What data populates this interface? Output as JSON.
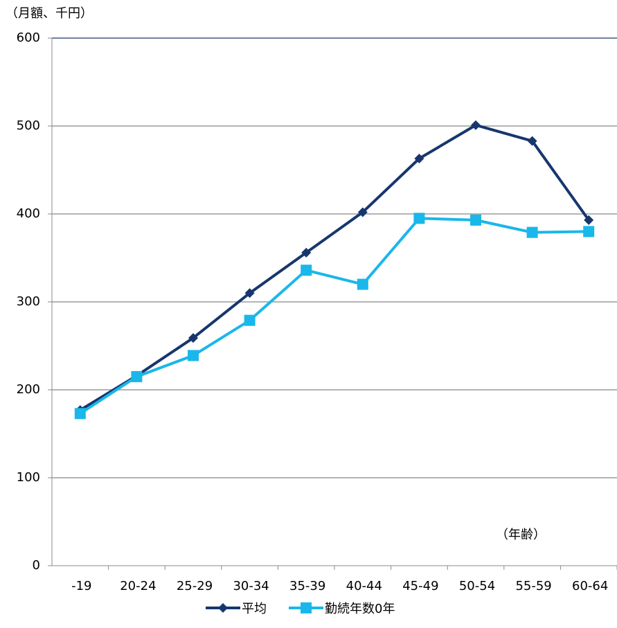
{
  "chart_data": {
    "type": "line",
    "y_label": "（月額、千円）",
    "annotation": "（年齢）",
    "categories": [
      "-19",
      "20-24",
      "25-29",
      "30-34",
      "35-39",
      "40-44",
      "45-49",
      "50-54",
      "55-59",
      "60-64"
    ],
    "series": [
      {
        "name": "平均",
        "color": "#17366e",
        "marker": "diamond",
        "values": [
          177,
          216,
          259,
          310,
          356,
          402,
          463,
          501,
          483,
          393
        ]
      },
      {
        "name": "勤続年数0年",
        "color": "#1ab7ea",
        "marker": "square",
        "values": [
          173,
          215,
          239,
          279,
          336,
          320,
          395,
          393,
          379,
          380
        ]
      }
    ],
    "ylim": [
      0,
      600
    ],
    "yticks": [
      0,
      100,
      200,
      300,
      400,
      500,
      600
    ],
    "grid": true
  }
}
